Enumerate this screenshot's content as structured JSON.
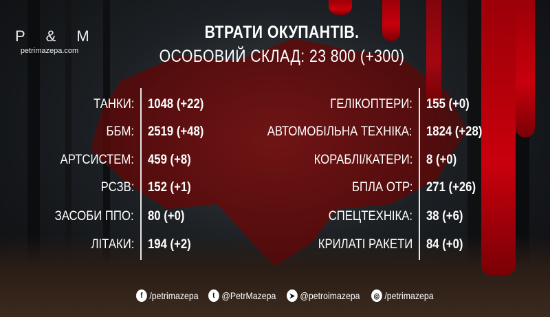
{
  "logo": {
    "letters": "P&M",
    "url": "petrimazepa.com"
  },
  "title": {
    "line1": "ВТРАТИ ОКУПАНТІВ.",
    "line2": "ОСОБОВИЙ СКЛАД: 23 800 (+300)"
  },
  "left": [
    {
      "label": "ТАНКИ:",
      "value": "1048 (+22)"
    },
    {
      "label": "ББМ:",
      "value": "2519 (+48)"
    },
    {
      "label": "АРТСИСТЕМ:",
      "value": "459 (+8)"
    },
    {
      "label": "РСЗВ:",
      "value": "152 (+1)"
    },
    {
      "label": "ЗАСОБИ ППО:",
      "value": "80 (+0)"
    },
    {
      "label": "ЛІТАКИ:",
      "value": "194 (+2)"
    }
  ],
  "right": [
    {
      "label": "ГЕЛІКОПТЕРИ:",
      "value": "155 (+0)"
    },
    {
      "label": "АВТОМОБІЛЬНА ТЕХНІКА:",
      "value": "1824 (+28)"
    },
    {
      "label": "КОРАБЛІ/КАТЕРИ:",
      "value": "8 (+0)"
    },
    {
      "label": "БПЛА ОТР:",
      "value": "271 (+26)"
    },
    {
      "label": "СПЕЦТЕХНІКА:",
      "value": "38 (+6)"
    },
    {
      "label": "КРИЛАТІ РАКЕТИ",
      "value": "84 (+0)"
    }
  ],
  "social": [
    {
      "icon": "facebook-icon",
      "text": "/petrimazepa"
    },
    {
      "icon": "twitter-icon",
      "text": "@PetrMazepa"
    },
    {
      "icon": "telegram-icon",
      "text": "@petroimazepa"
    },
    {
      "icon": "instagram-icon",
      "text": "/petrimazepa"
    }
  ],
  "colors": {
    "blood": "#c8000c",
    "map": "#6a0a0a"
  }
}
